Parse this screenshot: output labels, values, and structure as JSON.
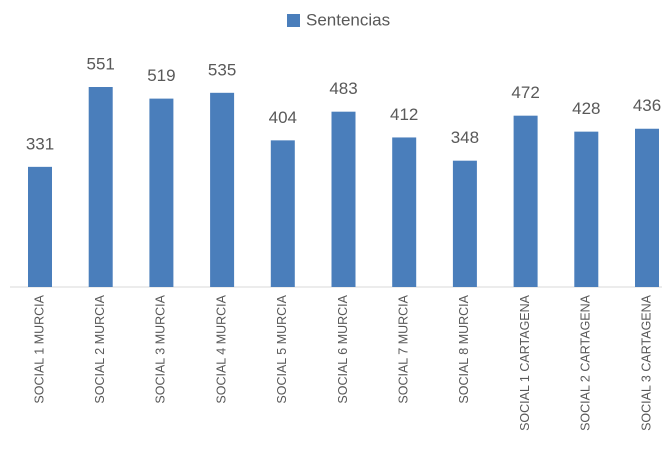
{
  "chart_data": {
    "type": "bar",
    "categories": [
      "SOCIAL 1 MURCIA",
      "SOCIAL 2 MURCIA",
      "SOCIAL 3 MURCIA",
      "SOCIAL 4 MURCIA",
      "SOCIAL 5 MURCIA",
      "SOCIAL 6 MURCIA",
      "SOCIAL 7 MURCIA",
      "SOCIAL 8 MURCIA",
      "SOCIAL 1 CARTAGENA",
      "SOCIAL 2 CARTAGENA",
      "SOCIAL 3 CARTAGENA"
    ],
    "series": [
      {
        "name": "Sentencias",
        "color": "#4a7ebb",
        "values": [
          331,
          551,
          519,
          535,
          404,
          483,
          412,
          348,
          472,
          428,
          436
        ]
      }
    ],
    "legend": "top"
  }
}
